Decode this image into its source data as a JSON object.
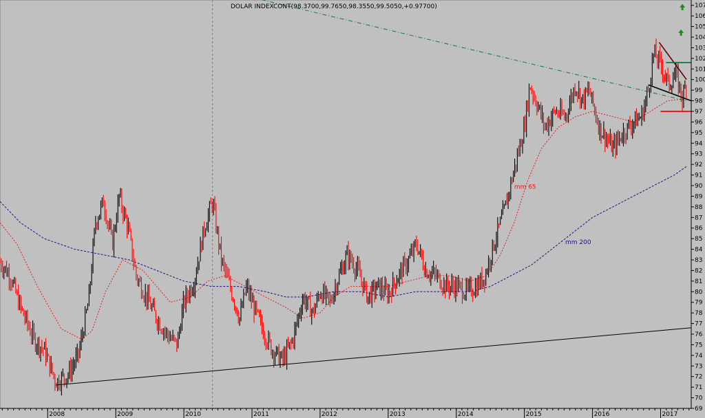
{
  "chart_data": {
    "type": "candlestick",
    "title": "DOLAR INDEXCONT(98.3700,99.7650,98.3550,99.5050,+0.97700)",
    "xlabel": "",
    "ylabel": "",
    "ylim": [
      69,
      107.5
    ],
    "xlim": [
      2007.3,
      2017.45
    ],
    "yticks": [
      69,
      70,
      71,
      72,
      73,
      74,
      75,
      76,
      77,
      78,
      79,
      80,
      81,
      82,
      83,
      84,
      85,
      86,
      87,
      88,
      89,
      90,
      91,
      92,
      93,
      94,
      95,
      96,
      97,
      98,
      99,
      100,
      101,
      102,
      103,
      104,
      105,
      106,
      107
    ],
    "year_labels": [
      "2008",
      "2009",
      "2010",
      "2011",
      "2012",
      "2013",
      "2014",
      "2015",
      "2016",
      "2017"
    ],
    "year_positions": [
      2008.0,
      2009.0,
      2010.0,
      2011.0,
      2012.0,
      2013.0,
      2014.0,
      2015.0,
      2016.0,
      2017.0
    ],
    "grid": true,
    "colors": {
      "background": "#c0c0c0",
      "price_up": "#000000",
      "price_down": "#ff0000",
      "mm65": "#e8191c",
      "mm200": "#2a0a80",
      "resistance": "#0a7a3a",
      "support": "#000000",
      "arrow": "#1a8a1a"
    },
    "price_anchors": [
      [
        2007.3,
        82.8
      ],
      [
        2007.45,
        81.5
      ],
      [
        2007.6,
        78.5
      ],
      [
        2007.8,
        75.5
      ],
      [
        2007.95,
        74.5
      ],
      [
        2008.12,
        71.5
      ],
      [
        2008.3,
        72.2
      ],
      [
        2008.45,
        74.0
      ],
      [
        2008.6,
        79.0
      ],
      [
        2008.7,
        86.5
      ],
      [
        2008.82,
        88.5
      ],
      [
        2008.95,
        84.5
      ],
      [
        2009.05,
        89.0
      ],
      [
        2009.18,
        86.0
      ],
      [
        2009.3,
        81.5
      ],
      [
        2009.45,
        79.5
      ],
      [
        2009.6,
        77.5
      ],
      [
        2009.75,
        76.0
      ],
      [
        2009.9,
        75.0
      ],
      [
        2010.0,
        79.0
      ],
      [
        2010.15,
        81.0
      ],
      [
        2010.3,
        86.0
      ],
      [
        2010.42,
        88.5
      ],
      [
        2010.55,
        83.0
      ],
      [
        2010.7,
        80.0
      ],
      [
        2010.82,
        77.5
      ],
      [
        2010.92,
        80.5
      ],
      [
        2011.0,
        79.0
      ],
      [
        2011.15,
        76.5
      ],
      [
        2011.3,
        74.5
      ],
      [
        2011.45,
        73.5
      ],
      [
        2011.6,
        75.5
      ],
      [
        2011.75,
        79.5
      ],
      [
        2011.9,
        78.0
      ],
      [
        2012.0,
        80.0
      ],
      [
        2012.15,
        79.0
      ],
      [
        2012.25,
        81.0
      ],
      [
        2012.4,
        83.5
      ],
      [
        2012.55,
        82.0
      ],
      [
        2012.7,
        79.5
      ],
      [
        2012.85,
        80.5
      ],
      [
        2013.0,
        79.8
      ],
      [
        2013.15,
        81.5
      ],
      [
        2013.3,
        83.0
      ],
      [
        2013.42,
        84.5
      ],
      [
        2013.55,
        82.0
      ],
      [
        2013.7,
        81.5
      ],
      [
        2013.85,
        80.5
      ],
      [
        2014.0,
        80.5
      ],
      [
        2014.15,
        80.0
      ],
      [
        2014.3,
        80.5
      ],
      [
        2014.42,
        81.5
      ],
      [
        2014.55,
        84.5
      ],
      [
        2014.7,
        87.5
      ],
      [
        2014.85,
        91.5
      ],
      [
        2015.0,
        95.5
      ],
      [
        2015.08,
        99.5
      ],
      [
        2015.2,
        97.5
      ],
      [
        2015.3,
        95.5
      ],
      [
        2015.45,
        97.0
      ],
      [
        2015.6,
        96.5
      ],
      [
        2015.75,
        99.5
      ],
      [
        2015.85,
        98.0
      ],
      [
        2015.95,
        99.0
      ],
      [
        2016.1,
        95.5
      ],
      [
        2016.2,
        94.5
      ],
      [
        2016.3,
        93.5
      ],
      [
        2016.45,
        95.0
      ],
      [
        2016.6,
        96.0
      ],
      [
        2016.72,
        96.5
      ],
      [
        2016.82,
        99.0
      ],
      [
        2016.9,
        102.5
      ],
      [
        2017.0,
        101.5
      ],
      [
        2017.12,
        99.5
      ],
      [
        2017.22,
        100.5
      ],
      [
        2017.32,
        98.3
      ],
      [
        2017.38,
        99.5
      ]
    ],
    "mm65_points": [
      [
        2007.3,
        86.5
      ],
      [
        2007.55,
        84.5
      ],
      [
        2007.85,
        80.5
      ],
      [
        2008.2,
        76.5
      ],
      [
        2008.5,
        75.5
      ],
      [
        2008.65,
        76.3
      ],
      [
        2008.85,
        80.0
      ],
      [
        2009.1,
        83.0
      ],
      [
        2009.4,
        82.0
      ],
      [
        2009.8,
        79.0
      ],
      [
        2010.1,
        79.5
      ],
      [
        2010.35,
        81.0
      ],
      [
        2010.6,
        81.5
      ],
      [
        2010.9,
        80.5
      ],
      [
        2011.2,
        79.5
      ],
      [
        2011.5,
        78.5
      ],
      [
        2011.75,
        77.5
      ],
      [
        2012.0,
        78.0
      ],
      [
        2012.2,
        79.5
      ],
      [
        2012.45,
        80.5
      ],
      [
        2012.7,
        80.5
      ],
      [
        2013.0,
        80.5
      ],
      [
        2013.3,
        81.0
      ],
      [
        2013.6,
        81.5
      ],
      [
        2013.9,
        81.5
      ],
      [
        2014.2,
        81.0
      ],
      [
        2014.45,
        81.5
      ],
      [
        2014.65,
        83.5
      ],
      [
        2014.85,
        86.5
      ],
      [
        2015.05,
        90.5
      ],
      [
        2015.25,
        93.5
      ],
      [
        2015.5,
        95.5
      ],
      [
        2015.75,
        96.5
      ],
      [
        2016.0,
        97.0
      ],
      [
        2016.3,
        96.5
      ],
      [
        2016.6,
        96.0
      ],
      [
        2016.85,
        97.0
      ],
      [
        2017.1,
        98.0
      ],
      [
        2017.38,
        98.2
      ]
    ],
    "mm200_points": [
      [
        2007.3,
        88.5
      ],
      [
        2007.6,
        86.5
      ],
      [
        2007.95,
        85.0
      ],
      [
        2008.4,
        84.0
      ],
      [
        2008.8,
        83.5
      ],
      [
        2009.2,
        83.0
      ],
      [
        2009.6,
        82.0
      ],
      [
        2010.0,
        81.0
      ],
      [
        2010.4,
        80.5
      ],
      [
        2010.8,
        80.5
      ],
      [
        2011.2,
        80.0
      ],
      [
        2011.5,
        79.5
      ],
      [
        2011.8,
        79.5
      ],
      [
        2012.2,
        80.0
      ],
      [
        2012.6,
        80.0
      ],
      [
        2013.0,
        79.5
      ],
      [
        2013.4,
        80.0
      ],
      [
        2013.8,
        80.0
      ],
      [
        2014.2,
        80.0
      ],
      [
        2014.5,
        80.5
      ],
      [
        2014.8,
        81.5
      ],
      [
        2015.1,
        82.5
      ],
      [
        2015.4,
        84.0
      ],
      [
        2015.7,
        85.5
      ],
      [
        2016.0,
        87.0
      ],
      [
        2016.3,
        88.0
      ],
      [
        2016.6,
        89.0
      ],
      [
        2016.9,
        90.0
      ],
      [
        2017.2,
        91.0
      ],
      [
        2017.38,
        91.8
      ]
    ],
    "trendlines": [
      {
        "kind": "support",
        "points": [
          [
            2008.12,
            71.2
          ],
          [
            2017.45,
            76.6
          ]
        ]
      },
      {
        "kind": "resistance",
        "points": [
          [
            2010.5,
            108.5
          ],
          [
            2017.38,
            98.0
          ]
        ]
      },
      {
        "kind": "wedge-upper",
        "points": [
          [
            2016.98,
            103.5
          ],
          [
            2017.38,
            100.0
          ]
        ]
      },
      {
        "kind": "wedge-lower",
        "points": [
          [
            2016.82,
            99.5
          ],
          [
            2017.45,
            98.0
          ]
        ]
      },
      {
        "kind": "level-green",
        "points": [
          [
            2017.08,
            101.6
          ],
          [
            2017.45,
            101.6
          ]
        ]
      },
      {
        "kind": "level-red",
        "points": [
          [
            2017.0,
            97.0
          ],
          [
            2017.45,
            97.0
          ]
        ]
      }
    ],
    "vertical_marker": 2010.42,
    "annotations": [
      {
        "text": "mm 65",
        "x": 2014.85,
        "y": 89.7,
        "color": "#e8191c"
      },
      {
        "text": "mm 200",
        "x": 2015.6,
        "y": 84.5,
        "color": "#2a0a80"
      }
    ],
    "arrows": [
      [
        2017.32,
        106.8
      ],
      [
        2017.3,
        104.4
      ]
    ]
  }
}
